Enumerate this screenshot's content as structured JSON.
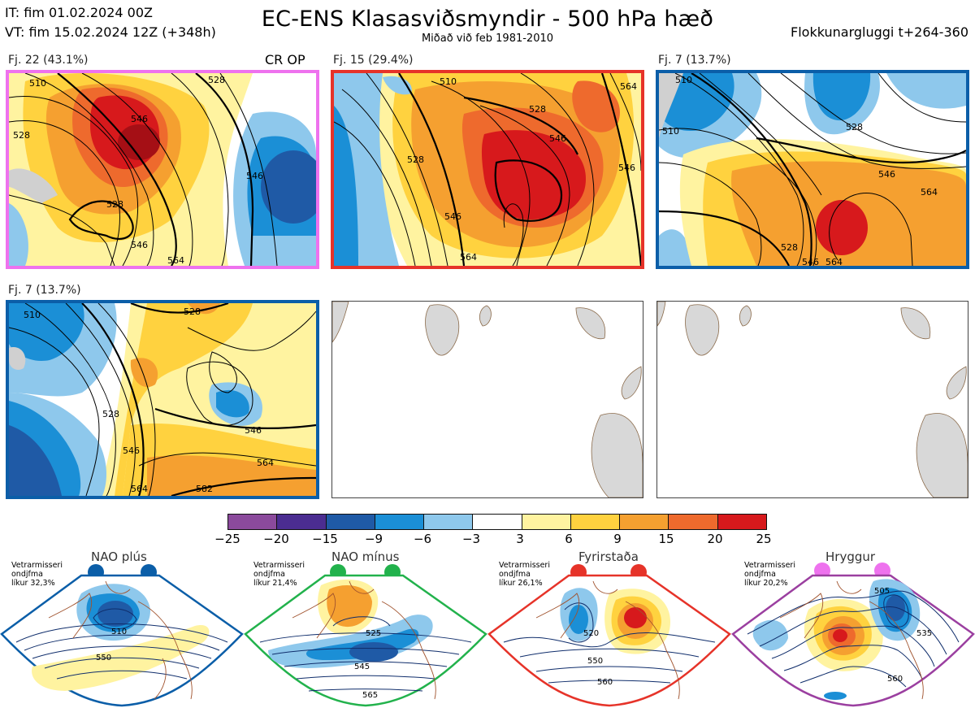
{
  "header": {
    "init_time": "IT: fim 01.02.2024 00Z",
    "valid_time": "VT: fim 15.02.2024 12Z  (+348h)",
    "title": "EC-ENS Klasasviðsmyndir - 500 hPa hæð",
    "subtitle": "Miðað við feb 1981-2010",
    "window": "Flokkunargluggi t+264-360"
  },
  "panels": [
    {
      "label": "Fj. 22 (43.1%)",
      "extra": "CR OP",
      "border_color": "#ee72ee"
    },
    {
      "label": "Fj. 15 (29.4%)",
      "extra": "",
      "border_color": "#e63329"
    },
    {
      "label": "Fj. 7 (13.7%)",
      "extra": "",
      "border_color": "#0b5ea8"
    },
    {
      "label": "Fj. 7 (13.7%)",
      "extra": "",
      "border_color": "#0b5ea8"
    }
  ],
  "contour_labels": {
    "p1": [
      "510",
      "528",
      "546",
      "528",
      "546",
      "546",
      "564",
      "528"
    ],
    "p2": [
      "510",
      "528",
      "528",
      "546",
      "546",
      "546",
      "564",
      "564"
    ],
    "p3": [
      "510",
      "510",
      "528",
      "528",
      "546",
      "564",
      "546",
      "564"
    ],
    "p4": [
      "510",
      "528",
      "528",
      "546",
      "546",
      "564",
      "564",
      "582"
    ]
  },
  "colorbar": {
    "ticks": [
      "−25",
      "−20",
      "−15",
      "−9",
      "−6",
      "−3",
      "3",
      "6",
      "9",
      "15",
      "20",
      "25"
    ],
    "colors": [
      "#8b4a9c",
      "#4b2d91",
      "#1f5aa6",
      "#1b8fd6",
      "#8ec8ec",
      "#ffffff",
      "#fff3a0",
      "#ffd23f",
      "#f5a030",
      "#ee6a2d",
      "#d7191c",
      "#a50f15"
    ]
  },
  "regimes": [
    {
      "name": "NAO plús",
      "note": [
        "Vetrarmisseri",
        "ondjfma",
        "líkur 32,3%"
      ],
      "color": "#0b5ea8",
      "labels": [
        "510",
        "550"
      ]
    },
    {
      "name": "NAO mínus",
      "note": [
        "Vetrarmisseri",
        "ondjfma",
        "líkur 21,4%"
      ],
      "color": "#22b24c",
      "labels": [
        "525",
        "545",
        "565"
      ]
    },
    {
      "name": "Fyrirstaða",
      "note": [
        "Vetrarmisseri",
        "ondjfma",
        "líkur 26,1%"
      ],
      "color": "#e63329",
      "labels": [
        "520",
        "550",
        "560"
      ]
    },
    {
      "name": "Hryggur",
      "note": [
        "Vetrarmisseri",
        "ondjfma",
        "líkur 20,2%"
      ],
      "color": "#9b3fa0",
      "labels": [
        "505",
        "535",
        "560"
      ]
    }
  ]
}
